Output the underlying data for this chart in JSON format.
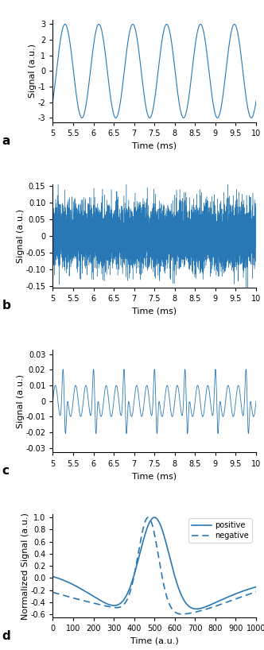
{
  "line_color": "#2878b5",
  "bg_color": "#ffffff",
  "panel_a": {
    "xlim": [
      5,
      10
    ],
    "ylim": [
      -3.3,
      3.3
    ],
    "yticks": [
      -3,
      -2,
      -1,
      0,
      1,
      2,
      3
    ],
    "xticks": [
      5,
      5.5,
      6,
      6.5,
      7,
      7.5,
      8,
      8.5,
      9,
      9.5,
      10
    ],
    "xlabel": "Time (ms)",
    "ylabel": "Signal (a.u.)",
    "amplitude": 3.0,
    "freq_per_ms": 1.2,
    "label": "a"
  },
  "panel_b": {
    "xlim": [
      5,
      10
    ],
    "ylim": [
      -0.155,
      0.155
    ],
    "yticks": [
      -0.15,
      -0.1,
      -0.05,
      0,
      0.05,
      0.1,
      0.15
    ],
    "xticks": [
      5,
      5.5,
      6,
      6.5,
      7,
      7.5,
      8,
      8.5,
      9,
      9.5,
      10
    ],
    "xlabel": "Time (ms)",
    "ylabel": "Signal (a.u.)",
    "noise_std": 0.045,
    "label": "b"
  },
  "panel_c": {
    "xlim": [
      5,
      10
    ],
    "ylim": [
      -0.033,
      0.033
    ],
    "yticks": [
      -0.03,
      -0.02,
      -0.01,
      0,
      0.01,
      0.02,
      0.03
    ],
    "xticks": [
      5,
      5.5,
      6,
      6.5,
      7,
      7.5,
      8,
      8.5,
      9,
      9.5,
      10
    ],
    "xlabel": "Time (ms)",
    "ylabel": "Signal (a.u.)",
    "label": "c"
  },
  "panel_d": {
    "xlim": [
      0,
      1000
    ],
    "ylim": [
      -0.65,
      1.05
    ],
    "yticks": [
      -0.6,
      -0.4,
      -0.2,
      0,
      0.2,
      0.4,
      0.6,
      0.8,
      1.0
    ],
    "xticks": [
      0,
      100,
      200,
      300,
      400,
      500,
      600,
      700,
      800,
      900,
      1000
    ],
    "xlabel": "Time (a.u.)",
    "ylabel": "Normalized Signal (a.u.)",
    "label": "d",
    "legend_positive": "positive",
    "legend_negative": "negative"
  },
  "tick_fontsize": 7,
  "label_fontsize": 8,
  "axis_label_fontsize": 8,
  "panel_label_fontsize": 11
}
